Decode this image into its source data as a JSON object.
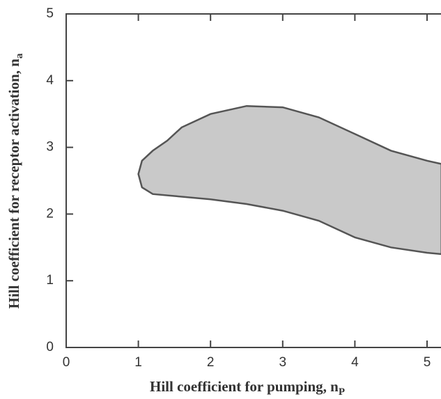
{
  "chart_data": {
    "type": "area",
    "xlabel": "Hill coefficient for pumping, n",
    "xlabel_sub": "P",
    "ylabel": "Hill coefficient for receptor activation, n",
    "ylabel_sub": "a",
    "xlim": [
      0,
      5.2
    ],
    "ylim": [
      0,
      5
    ],
    "xticks": [
      0,
      1,
      2,
      3,
      4,
      5
    ],
    "yticks": [
      0,
      1,
      2,
      3,
      4,
      5
    ],
    "fill": "#c9c9c9",
    "edge": "#555555",
    "region": {
      "x": [
        1.0,
        1.05,
        1.2,
        1.4,
        1.6,
        2.0,
        2.5,
        3.0,
        3.5,
        4.0,
        4.5,
        5.0,
        5.2,
        5.2,
        5.0,
        4.5,
        4.0,
        3.5,
        3.0,
        2.5,
        2.0,
        1.5,
        1.2,
        1.05
      ],
      "y": [
        2.6,
        2.8,
        2.95,
        3.1,
        3.3,
        3.5,
        3.62,
        3.6,
        3.45,
        3.2,
        2.95,
        2.8,
        2.75,
        1.4,
        1.42,
        1.5,
        1.65,
        1.9,
        2.05,
        2.15,
        2.22,
        2.27,
        2.3,
        2.4
      ]
    }
  }
}
